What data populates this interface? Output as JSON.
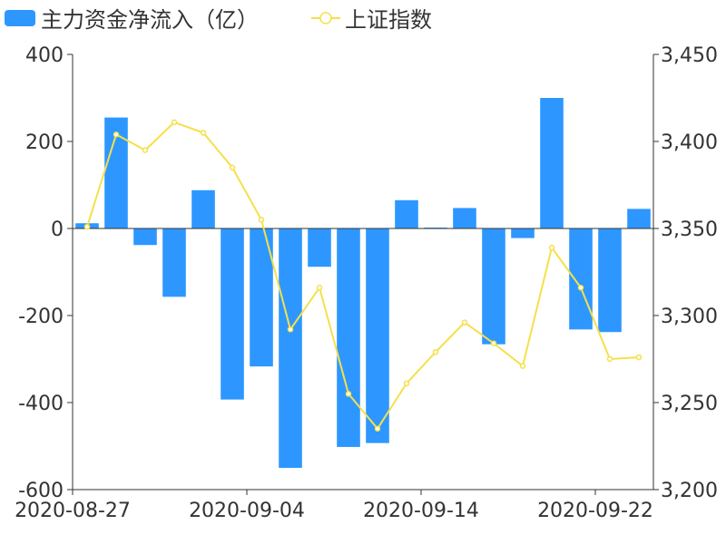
{
  "legend": {
    "bar_label": "主力资金净流入（亿）",
    "line_label": "上证指数"
  },
  "chart_data": {
    "type": "bar+line",
    "title": "",
    "legend_position": "top-left",
    "grid": false,
    "colors": {
      "bar": "#2d97ff",
      "line": "#f5e04a"
    },
    "x_tick_labels": [
      "2020-08-27",
      "2020-09-04",
      "2020-09-14",
      "2020-09-22"
    ],
    "x_tick_indices": [
      0,
      6,
      12,
      18
    ],
    "y_left": {
      "range": [
        -600,
        400
      ],
      "ticks": [
        400,
        200,
        0,
        -200,
        -400,
        -600
      ],
      "tick_labels": [
        "400",
        "200",
        "0",
        "-200",
        "-400",
        "-600"
      ]
    },
    "y_right": {
      "range": [
        3200,
        3450
      ],
      "ticks": [
        3450,
        3400,
        3350,
        3300,
        3250,
        3200
      ],
      "tick_labels": [
        "3,450",
        "3,400",
        "3,350",
        "3,300",
        "3,250",
        "3,200"
      ]
    },
    "series": [
      {
        "name": "主力资金净流入（亿）",
        "type": "bar",
        "axis": "left",
        "values": [
          12,
          255,
          -38,
          -157,
          88,
          -393,
          -317,
          -550,
          -88,
          -502,
          -493,
          65,
          2,
          47,
          -266,
          -22,
          300,
          -232,
          -238,
          45
        ]
      },
      {
        "name": "上证指数",
        "type": "line",
        "axis": "right",
        "values": [
          3351,
          3404,
          3395,
          3411,
          3405,
          3385,
          3355,
          3292,
          3316,
          3255,
          3235,
          3261,
          3279,
          3296,
          3284,
          3271,
          3339,
          3316,
          3275,
          3276
        ]
      }
    ]
  }
}
